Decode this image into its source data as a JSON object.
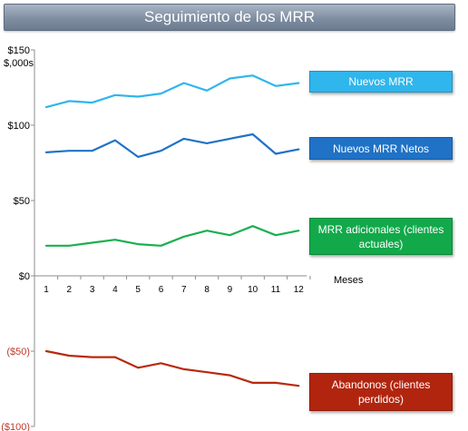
{
  "chart_data": {
    "type": "line",
    "title": "Seguimiento de los MRR",
    "ylabel": "$,000s",
    "xlabel": "Meses",
    "x": [
      1,
      2,
      3,
      4,
      5,
      6,
      7,
      8,
      9,
      10,
      11,
      12
    ],
    "ylim": [
      -100,
      150
    ],
    "y_ticks": [
      "$150",
      "$100",
      "$50",
      "$0",
      "($50)",
      "($100)"
    ],
    "y_tick_values": [
      150,
      100,
      50,
      0,
      -50,
      -100
    ],
    "grid": false,
    "legend_placement": "right",
    "series": [
      {
        "name": "Nuevos MRR",
        "color": "#2fb6ec",
        "values": [
          112,
          116,
          115,
          120,
          119,
          121,
          128,
          123,
          131,
          133,
          126,
          128
        ]
      },
      {
        "name": "Nuevos MRR Netos",
        "color": "#1f72c6",
        "values": [
          82,
          83,
          83,
          90,
          79,
          83,
          91,
          88,
          91,
          94,
          81,
          84
        ]
      },
      {
        "name": "MRR adicionales (clientes actuales)",
        "color": "#19b04f",
        "values": [
          20,
          20,
          22,
          24,
          21,
          20,
          26,
          30,
          27,
          33,
          27,
          30
        ]
      },
      {
        "name": "Abandonos (clientes perdidos)",
        "color": "#b82a10",
        "values": [
          -50,
          -53,
          -54,
          -54,
          -61,
          -58,
          -62,
          -64,
          -66,
          -71,
          -71,
          -73
        ]
      }
    ]
  },
  "legend": [
    {
      "label": "Nuevos MRR",
      "color": "#2fb6ec"
    },
    {
      "label": "Nuevos MRR Netos",
      "color": "#1f72c6"
    },
    {
      "label": "MRR adicionales (clientes actuales)",
      "color": "#12a94a"
    },
    {
      "label": "Abandonos (clientes perdidos)",
      "color": "#b1250f"
    }
  ]
}
